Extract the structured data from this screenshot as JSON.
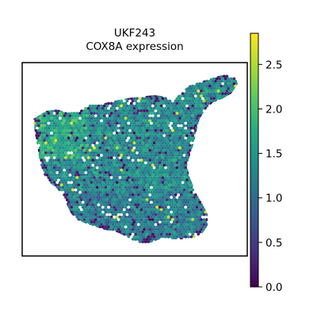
{
  "chart_data": {
    "type": "heatmap",
    "subtype": "spatial-scatter",
    "title": "UKF243",
    "subtitle": "COX8A expression",
    "xlabel": "",
    "ylabel": "",
    "axis_ticks": false,
    "grid": false,
    "colormap": "viridis",
    "colorbar": {
      "placement": "right",
      "min": 0.0,
      "max": 2.85,
      "ticks": [
        0.0,
        0.5,
        1.0,
        1.5,
        2.0,
        2.5
      ],
      "tick_labels": [
        "0.0",
        "0.5",
        "1.0",
        "1.5",
        "2.0",
        "2.5"
      ]
    },
    "value_summary": {
      "typical_range": [
        1.0,
        2.0
      ],
      "dominant_color": "teal-green",
      "low_value_spots": "scattered along tissue edges and lower-left region"
    },
    "colors": {
      "low": "#440154",
      "mid": "#21918c",
      "high": "#fde725",
      "frame": "#000000"
    }
  }
}
